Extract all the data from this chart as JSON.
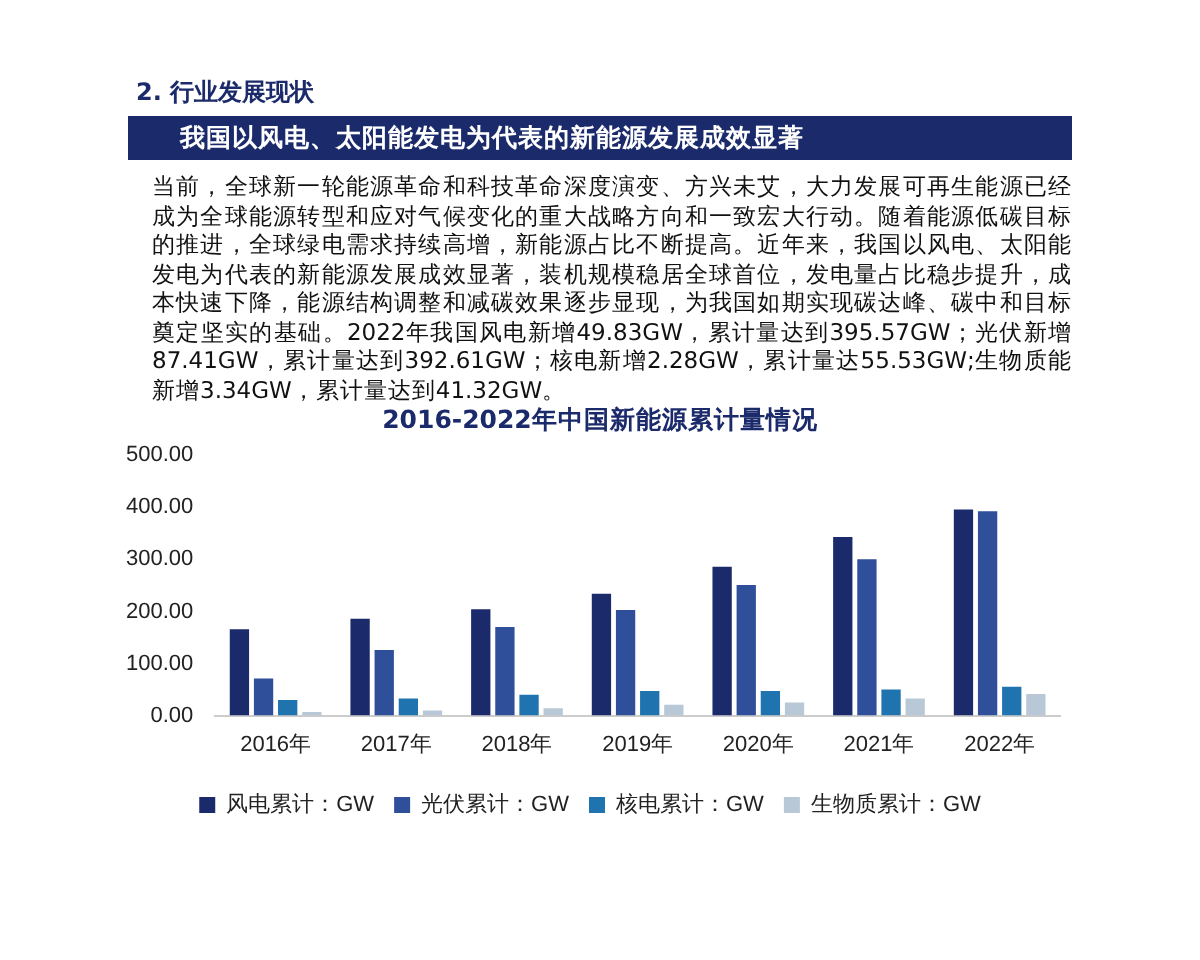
{
  "chart_data": {
    "type": "bar",
    "title": "2016-2022年中国新能源累计量情况",
    "annotations": [
      "2. 行业发展现状",
      "我国以风电、太阳能发电为代表的新能源发展成效显著",
      "当前，全球新一轮能源革命和科技革命深度演变、方兴未艾，大力发展可再生能源已经成为全球能源转型和应对气候变化的重大战略方向和一致宏大行动。随着能源低碳目标的推进，全球绿电需求持续高增，新能源占比不断提高。近年来，我国以风电、太阳能发电为代表的新能源发展成效显著，装机规模稳居全球首位，发电量占比稳步提升，成本快速下降，能源结构调整和减碳效果逐步显现，为我国如期实现碳达峰、碳中和目标奠定坚实的基础。2022年我国风电新增49.83GW，累计量达到395.57GW；光伏新增87.41GW，累计量达到392.61GW；核电新增2.28GW，累计量达55.53GW;生物质能新增3.34GW，累计量达到41.32GW。"
    ],
    "categories": [
      "2016年",
      "2017年",
      "2018年",
      "2019年",
      "2020年",
      "2021年",
      "2022年"
    ],
    "series": [
      {
        "name": "风电累计：GW",
        "color": "#1b2a6b",
        "values": [
          166,
          186,
          204,
          234,
          286,
          343,
          395.57
        ]
      },
      {
        "name": "光伏累计：GW",
        "color": "#2f4f9a",
        "values": [
          71,
          126,
          170,
          203,
          251,
          300,
          392.61
        ]
      },
      {
        "name": "核电累计：GW",
        "color": "#1f74b0",
        "values": [
          30,
          33,
          40,
          47,
          47,
          50,
          55.53
        ]
      },
      {
        "name": "生物质累计：GW",
        "color": "#b9c8d6",
        "values": [
          7,
          10,
          14,
          21,
          25,
          33,
          41.32
        ]
      }
    ],
    "ylim": [
      0,
      500
    ],
    "yticks": [
      {
        "value": 0,
        "label": "0.00"
      },
      {
        "value": 100,
        "label": "100.00"
      },
      {
        "value": 200,
        "label": "200.00"
      },
      {
        "value": 300,
        "label": "300.00"
      },
      {
        "value": 400,
        "label": "400.00"
      },
      {
        "value": 500,
        "label": "500.00"
      }
    ],
    "grid": false,
    "legend": "bottom"
  }
}
